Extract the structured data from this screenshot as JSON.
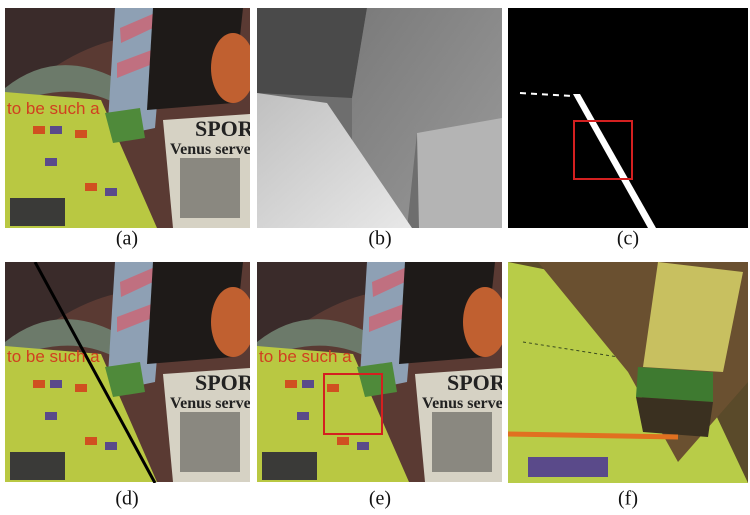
{
  "panels": [
    {
      "caption": "(a)",
      "texts": [
        "to be such a",
        "SPORT",
        "Venus serves"
      ]
    },
    {
      "caption": "(b)"
    },
    {
      "caption": "(c)"
    },
    {
      "caption": "(d)",
      "texts": [
        "to be such a",
        "SPORT",
        "Venus serves"
      ]
    },
    {
      "caption": "(e)",
      "texts": [
        "to be such a",
        "SPORT",
        "Venus serves"
      ]
    },
    {
      "caption": "(f)"
    }
  ]
}
